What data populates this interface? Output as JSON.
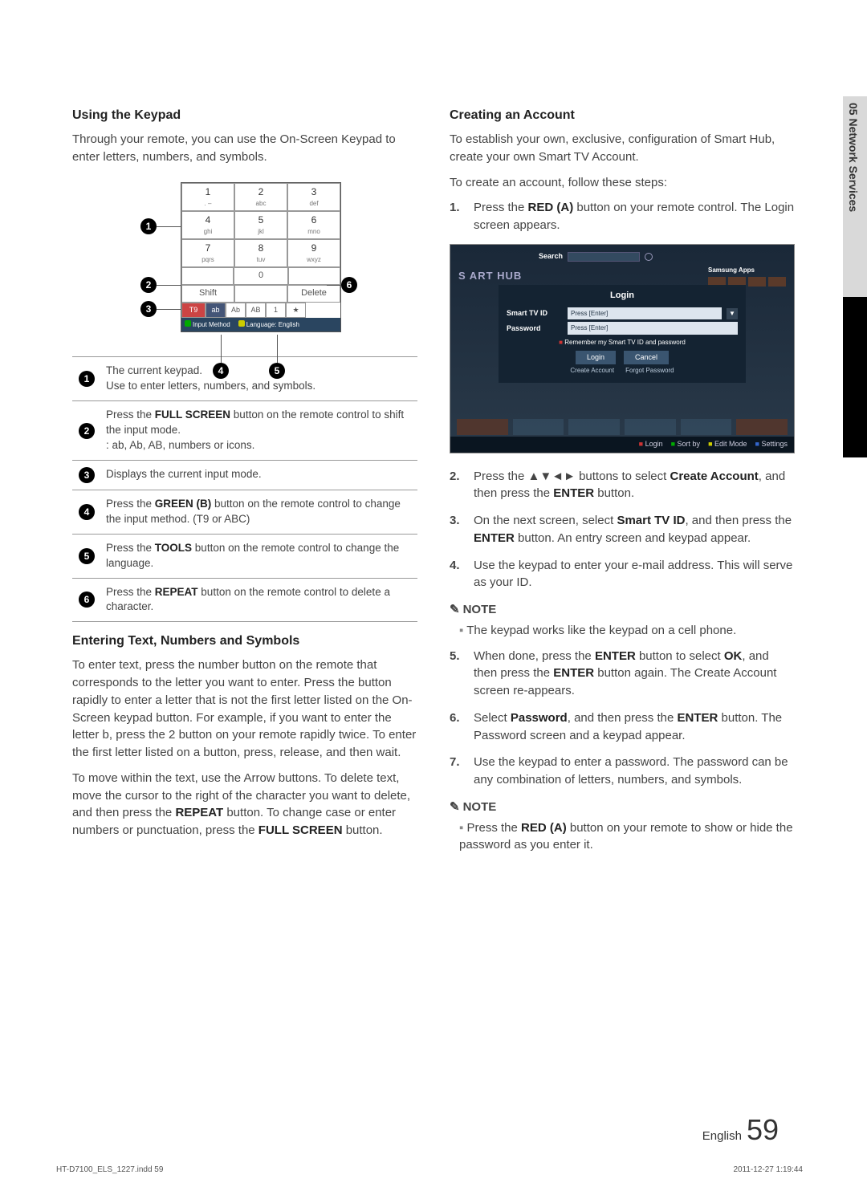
{
  "sideTab": "05   Network Services",
  "left": {
    "h1": "Using the Keypad",
    "p1": "Through your remote, you can use the On-Screen Keypad to enter letters, numbers, and symbols.",
    "keypad": {
      "cells": [
        {
          "n": "1",
          "s": " . – "
        },
        {
          "n": "2",
          "s": "abc"
        },
        {
          "n": "3",
          "s": "def"
        },
        {
          "n": "4",
          "s": "ghi"
        },
        {
          "n": "5",
          "s": "jkl"
        },
        {
          "n": "6",
          "s": "mno"
        },
        {
          "n": "7",
          "s": "pqrs"
        },
        {
          "n": "8",
          "s": "tuv"
        },
        {
          "n": "9",
          "s": "wxyz"
        }
      ],
      "zero": "0",
      "shift": "Shift",
      "delete": "Delete",
      "modes": {
        "t9": "T9",
        "ab": "ab",
        "Ab": "Ab",
        "AB": "AB",
        "one": "1",
        "star": "★"
      },
      "footer": {
        "input": "Input Method",
        "lang": "Language: English"
      }
    },
    "legend": [
      "The current keypad.\nUse to enter letters, numbers, and symbols.",
      "Press the **FULL SCREEN** button on the remote control to shift the input mode.\n: ab, Ab, AB, numbers or icons.",
      "Displays the current input mode.",
      "Press the **GREEN (B)** button on the remote control to change the input method. (T9 or ABC)",
      "Press the **TOOLS** button on the remote control to change the language.",
      "Press the **REPEAT** button on the remote control to delete a character."
    ],
    "h2": "Entering Text, Numbers and Symbols",
    "p2": "To enter text, press the number button on the remote that corresponds to the letter you want to enter. Press the button rapidly to enter a letter that is not the first letter listed on the On-Screen keypad button. For example, if you want to enter the letter b, press the 2 button on your remote rapidly twice. To enter the first letter listed on a button, press, release, and then wait.",
    "p3": "To move within the text, use the Arrow buttons. To delete text, move the cursor to the right of the character you want to delete, and then press the **REPEAT** button. To change case or enter numbers or punctuation, press the **FULL SCREEN** button."
  },
  "right": {
    "h1": "Creating an Account",
    "p1": "To establish your own, exclusive, configuration of Smart Hub, create your own Smart TV Account.",
    "p2": "To create an account, follow these steps:",
    "step1": "Press the **RED (A)** button on your remote control. The Login screen appears.",
    "login": {
      "hub": "S   ART HUB",
      "search": "Search",
      "apps": "Samsung Apps",
      "title": "Login",
      "idLabel": "Smart TV ID",
      "idPh": "Press [Enter]",
      "pwLabel": "Password",
      "pwPh": "Press [Enter]",
      "remember": "Remember my Smart TV ID and password",
      "loginBtn": "Login",
      "cancelBtn": "Cancel",
      "create": "Create Account",
      "forgot": "Forgot Password",
      "bottom": [
        "Login",
        "Sort by",
        "Edit Mode",
        "Settings"
      ]
    },
    "step2a": "Press the ▲▼◄► buttons to select ",
    "step2b": "Create Account",
    "step2c": ", and then press the ",
    "step2d": "ENTER",
    "step2e": " button.",
    "step3": "On the next screen, select **Smart TV ID**, and then press the **ENTER** button. An entry screen and keypad appear.",
    "step4": "Use the keypad to enter your e-mail address. This will serve as your ID.",
    "noteH": "NOTE",
    "note1": "The keypad works like the keypad on a cell phone.",
    "step5": "When done, press the **ENTER** button to select **OK**, and then press the **ENTER** button again. The Create Account screen re-appears.",
    "step6": "Select **Password**, and then press the **ENTER** button. The Password screen and a keypad appear.",
    "step7": "Use the keypad to enter a password. The password can be any combination of letters, numbers, and symbols.",
    "note2": "Press the **RED (A)** button on your remote to show or hide the password as you enter it."
  },
  "footer": {
    "lang": "English",
    "page": "59",
    "mark": "HT-D7100_ELS_1227.indd   59",
    "date": "2011-12-27   1:19:44"
  }
}
